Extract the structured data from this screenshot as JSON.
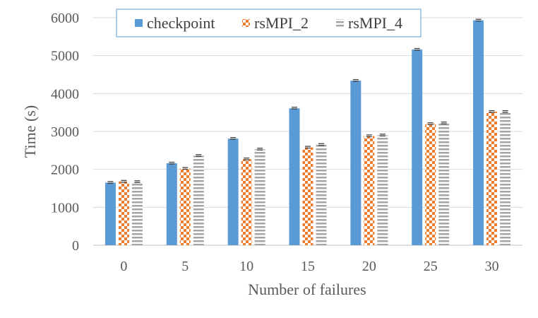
{
  "chart_data": {
    "type": "bar",
    "title": "",
    "xlabel": "Number of failures",
    "ylabel": "Time (s)",
    "categories": [
      "0",
      "5",
      "10",
      "15",
      "20",
      "25",
      "30"
    ],
    "ylim": [
      0,
      6000
    ],
    "yticks": [
      "0",
      "1000",
      "2000",
      "3000",
      "4000",
      "5000",
      "6000"
    ],
    "grid": true,
    "error_bars": true,
    "legend_position": "top",
    "series": [
      {
        "name": "checkpoint",
        "color": "#5B9BD5",
        "pattern": "solid",
        "values": [
          1650,
          2160,
          2810,
          3610,
          4340,
          5160,
          5930
        ]
      },
      {
        "name": "rsMPI_2",
        "color": "#ED7D31",
        "pattern": "checker",
        "values": [
          1680,
          2020,
          2270,
          2580,
          2880,
          3200,
          3520
        ]
      },
      {
        "name": "rsMPI_4",
        "color": "#A5A5A5",
        "pattern": "stripes",
        "values": [
          1670,
          2360,
          2530,
          2650,
          2900,
          3220,
          3520
        ]
      }
    ]
  }
}
